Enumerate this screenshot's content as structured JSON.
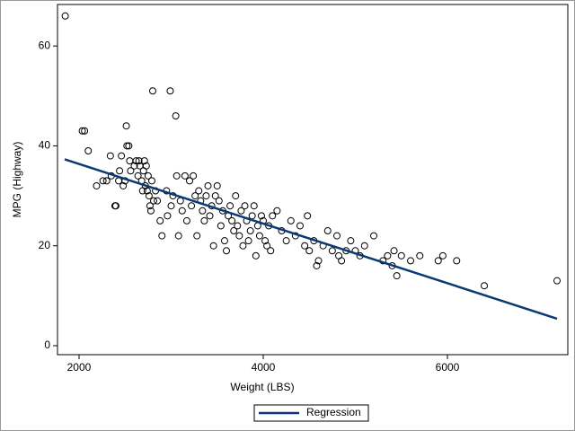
{
  "chart_data": {
    "type": "scatter",
    "xlabel": "Weight (LBS)",
    "ylabel": "MPG (Highway)",
    "xlim": [
      1766,
      7307
    ],
    "ylim": [
      -1.8,
      68.3
    ],
    "xticks": [
      2000,
      4000,
      6000
    ],
    "yticks": [
      0,
      20,
      40,
      60
    ],
    "series": [
      {
        "type": "scatter",
        "color": "#000000",
        "x": [
          1850,
          2035,
          2060,
          2100,
          2190,
          2260,
          2300,
          2340,
          2350,
          2390,
          2400,
          2430,
          2440,
          2460,
          2480,
          2500,
          2513,
          2520,
          2540,
          2550,
          2560,
          2600,
          2620,
          2640,
          2650,
          2660,
          2680,
          2690,
          2700,
          2710,
          2720,
          2730,
          2740,
          2750,
          2760,
          2770,
          2780,
          2790,
          2800,
          2810,
          2830,
          2850,
          2880,
          2900,
          2950,
          2990,
          2960,
          3000,
          3020,
          3050,
          3060,
          3080,
          3100,
          3120,
          3150,
          3170,
          3200,
          3220,
          3240,
          3260,
          3280,
          3300,
          3320,
          3340,
          3360,
          3380,
          3400,
          3420,
          3440,
          3460,
          3480,
          3500,
          3520,
          3540,
          3560,
          3580,
          3600,
          3620,
          3640,
          3660,
          3680,
          3700,
          3720,
          3740,
          3760,
          3780,
          3800,
          3820,
          3840,
          3860,
          3880,
          3900,
          3920,
          3940,
          3960,
          3980,
          4000,
          4020,
          4040,
          4060,
          4080,
          4100,
          4150,
          4200,
          4250,
          4300,
          4350,
          4400,
          4450,
          4480,
          4500,
          4550,
          4580,
          4600,
          4650,
          4700,
          4750,
          4800,
          4820,
          4850,
          4900,
          4950,
          5000,
          5050,
          5100,
          5200,
          5300,
          5350,
          5400,
          5420,
          5450,
          5500,
          5600,
          5700,
          5900,
          5950,
          6100,
          6400,
          7190
        ],
        "values": [
          66,
          43,
          43,
          39,
          32,
          33,
          33,
          38,
          34,
          28,
          28,
          33,
          35,
          38,
          32,
          33,
          44,
          40,
          40,
          37,
          35,
          36,
          37,
          34,
          37,
          36,
          33,
          31,
          35,
          37,
          32,
          36,
          31,
          34,
          30,
          28,
          27,
          33,
          51,
          29,
          31,
          29,
          25,
          22,
          31,
          51,
          26,
          28,
          30,
          46,
          34,
          22,
          29,
          27,
          34,
          25,
          33,
          28,
          34,
          30,
          22,
          31,
          29,
          27,
          25,
          30,
          32,
          26,
          28,
          20,
          30,
          32,
          29,
          24,
          27,
          21,
          19,
          26,
          28,
          25,
          23,
          30,
          24,
          22,
          27,
          20,
          28,
          25,
          21,
          23,
          26,
          28,
          18,
          24,
          22,
          26,
          25,
          21,
          20,
          24,
          19,
          26,
          27,
          23,
          21,
          25,
          22,
          24,
          20,
          26,
          19,
          21,
          16,
          17,
          20,
          23,
          19,
          22,
          18,
          17,
          19,
          21,
          19,
          18,
          20,
          22,
          17,
          18,
          16,
          19,
          14,
          18,
          17,
          18,
          17,
          18,
          17,
          12,
          13
        ]
      },
      {
        "type": "line",
        "name": "Regression",
        "color": "#0b3a72",
        "x": [
          1844,
          7190
        ],
        "values": [
          37.3,
          5.4
        ]
      }
    ]
  }
}
